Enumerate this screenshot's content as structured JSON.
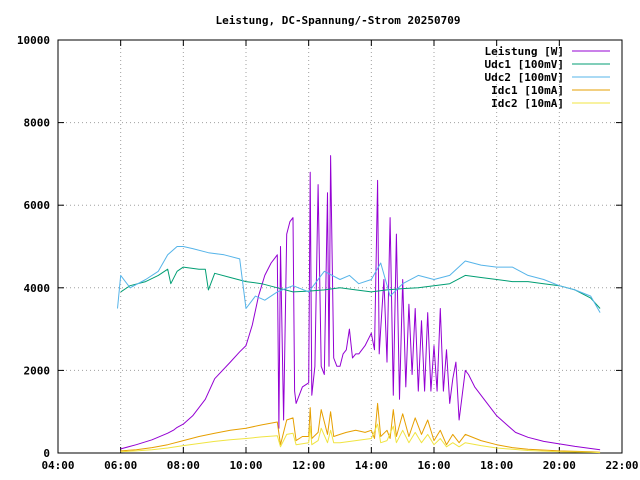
{
  "chart_data": {
    "type": "line",
    "title": "Leistung, DC-Spannung/-Strom 20250709",
    "xlabel": "",
    "ylabel": "",
    "xlim": [
      4,
      22
    ],
    "ylim": [
      0,
      10000
    ],
    "xticks": [
      4,
      6,
      8,
      10,
      12,
      14,
      16,
      18,
      20,
      22
    ],
    "xtick_labels": [
      "04:00",
      "06:00",
      "08:00",
      "10:00",
      "12:00",
      "14:00",
      "16:00",
      "18:00",
      "20:00",
      "22:00"
    ],
    "yticks": [
      0,
      2000,
      4000,
      6000,
      8000,
      10000
    ],
    "ytick_labels": [
      "0",
      "2000",
      "4000",
      "6000",
      "8000",
      "10000"
    ],
    "grid": true,
    "legend_position": "top-right",
    "series": [
      {
        "name": "Leistung [W]",
        "color": "#9400d3",
        "x": [
          6.0,
          6.5,
          7.0,
          7.5,
          7.7,
          7.8,
          8.0,
          8.3,
          8.5,
          8.7,
          9.0,
          9.5,
          9.8,
          10.0,
          10.2,
          10.4,
          10.6,
          10.8,
          10.9,
          11.0,
          11.05,
          11.1,
          11.2,
          11.3,
          11.4,
          11.5,
          11.55,
          11.6,
          11.8,
          12.0,
          12.05,
          12.1,
          12.2,
          12.3,
          12.4,
          12.5,
          12.6,
          12.65,
          12.7,
          12.8,
          12.9,
          13.0,
          13.1,
          13.2,
          13.3,
          13.4,
          13.5,
          13.6,
          13.8,
          14.0,
          14.1,
          14.2,
          14.25,
          14.3,
          14.4,
          14.5,
          14.6,
          14.7,
          14.8,
          14.9,
          15.0,
          15.1,
          15.2,
          15.3,
          15.4,
          15.5,
          15.6,
          15.7,
          15.8,
          15.9,
          16.0,
          16.1,
          16.2,
          16.3,
          16.4,
          16.5,
          16.6,
          16.7,
          16.8,
          16.9,
          17.0,
          17.1,
          17.3,
          17.6,
          18.0,
          18.3,
          18.6,
          19.0,
          19.5,
          20.0,
          20.5,
          21.0,
          21.3
        ],
        "values": [
          100,
          200,
          320,
          480,
          560,
          620,
          700,
          900,
          1100,
          1300,
          1800,
          2200,
          2450,
          2600,
          3100,
          3800,
          4300,
          4600,
          4700,
          4800,
          600,
          5000,
          800,
          5300,
          5600,
          5700,
          1500,
          1200,
          1600,
          1700,
          6800,
          1400,
          2100,
          6500,
          2100,
          1900,
          6300,
          2100,
          7200,
          2300,
          2100,
          2100,
          2400,
          2500,
          3000,
          2300,
          2400,
          2400,
          2600,
          2900,
          2500,
          6600,
          2400,
          3000,
          4200,
          2200,
          5700,
          1400,
          5300,
          1300,
          4200,
          1600,
          3600,
          1900,
          3500,
          1500,
          3200,
          1500,
          3400,
          1500,
          2600,
          1500,
          3500,
          1500,
          2500,
          1200,
          1800,
          2200,
          800,
          1400,
          2000,
          1900,
          1600,
          1300,
          900,
          700,
          500,
          380,
          280,
          220,
          160,
          110,
          80
        ]
      },
      {
        "name": "Udc1 [100mV]",
        "color": "#009e73",
        "x": [
          6.0,
          6.3,
          6.8,
          7.2,
          7.5,
          7.6,
          7.8,
          8.0,
          8.5,
          8.7,
          8.8,
          9.0,
          9.5,
          10.0,
          10.5,
          11.0,
          11.5,
          12.0,
          12.5,
          13.0,
          13.5,
          14.0,
          14.5,
          15.0,
          15.5,
          16.0,
          16.5,
          17.0,
          17.5,
          18.0,
          18.5,
          19.0,
          19.5,
          20.0,
          20.5,
          21.0,
          21.3
        ],
        "values": [
          3900,
          4050,
          4150,
          4300,
          4450,
          4100,
          4400,
          4500,
          4450,
          4450,
          3950,
          4350,
          4250,
          4150,
          4100,
          4000,
          3900,
          3920,
          3950,
          4000,
          3950,
          3900,
          3950,
          3980,
          4000,
          4050,
          4100,
          4300,
          4250,
          4200,
          4150,
          4150,
          4100,
          4050,
          3950,
          3750,
          3500
        ]
      },
      {
        "name": "Udc2 [100mV]",
        "color": "#56b4e9",
        "x": [
          5.9,
          6.0,
          6.3,
          6.8,
          7.2,
          7.5,
          7.8,
          8.0,
          8.3,
          8.8,
          9.3,
          9.8,
          10.0,
          10.3,
          10.6,
          11.0,
          11.5,
          12.0,
          12.5,
          13.0,
          13.3,
          13.6,
          14.0,
          14.3,
          14.6,
          15.0,
          15.5,
          16.0,
          16.5,
          17.0,
          17.5,
          18.0,
          18.5,
          19.0,
          19.5,
          20.0,
          20.5,
          21.0,
          21.3
        ],
        "values": [
          3500,
          4300,
          4000,
          4200,
          4400,
          4800,
          5000,
          5000,
          4950,
          4850,
          4800,
          4700,
          3500,
          3800,
          3700,
          3900,
          4050,
          3900,
          4400,
          4200,
          4300,
          4100,
          4200,
          4600,
          3800,
          4100,
          4300,
          4200,
          4300,
          4650,
          4550,
          4500,
          4500,
          4300,
          4200,
          4050,
          3950,
          3800,
          3400
        ]
      },
      {
        "name": "Idc1 [10mA]",
        "color": "#e69f00",
        "x": [
          6.0,
          6.5,
          7.0,
          7.5,
          8.0,
          8.5,
          9.0,
          9.5,
          10.0,
          10.5,
          11.0,
          11.1,
          11.3,
          11.5,
          11.6,
          11.8,
          12.0,
          12.05,
          12.1,
          12.3,
          12.4,
          12.6,
          12.7,
          12.8,
          13.0,
          13.2,
          13.5,
          13.8,
          14.0,
          14.1,
          14.2,
          14.3,
          14.5,
          14.6,
          14.7,
          14.8,
          15.0,
          15.2,
          15.4,
          15.6,
          15.8,
          16.0,
          16.2,
          16.4,
          16.6,
          16.8,
          17.0,
          17.5,
          18.0,
          18.5,
          19.0,
          20.0,
          21.0,
          21.3
        ],
        "values": [
          50,
          80,
          130,
          200,
          300,
          400,
          480,
          550,
          600,
          680,
          750,
          200,
          800,
          850,
          300,
          400,
          400,
          1100,
          350,
          500,
          1050,
          450,
          1000,
          400,
          450,
          500,
          550,
          500,
          550,
          350,
          1200,
          400,
          550,
          350,
          1050,
          400,
          950,
          400,
          850,
          450,
          800,
          300,
          550,
          200,
          450,
          250,
          450,
          300,
          200,
          130,
          90,
          50,
          30,
          20
        ]
      },
      {
        "name": "Idc2 [10mA]",
        "color": "#f0e442",
        "x": [
          6.0,
          6.5,
          7.0,
          7.5,
          8.0,
          8.5,
          9.0,
          9.5,
          10.0,
          10.5,
          11.0,
          11.1,
          11.3,
          11.5,
          11.6,
          12.0,
          12.05,
          12.1,
          12.3,
          12.4,
          12.6,
          12.7,
          12.8,
          13.0,
          13.5,
          14.0,
          14.2,
          14.3,
          14.5,
          14.7,
          14.8,
          15.0,
          15.2,
          15.4,
          15.6,
          15.8,
          16.0,
          16.2,
          16.4,
          16.6,
          16.8,
          17.0,
          17.5,
          18.0,
          19.0,
          20.0,
          21.0,
          21.3
        ],
        "values": [
          30,
          50,
          80,
          120,
          180,
          230,
          280,
          320,
          350,
          390,
          420,
          150,
          450,
          480,
          200,
          250,
          650,
          200,
          300,
          600,
          250,
          550,
          250,
          250,
          300,
          350,
          700,
          250,
          300,
          650,
          250,
          550,
          250,
          500,
          250,
          450,
          200,
          350,
          150,
          250,
          150,
          250,
          180,
          120,
          60,
          30,
          20,
          10
        ]
      }
    ]
  }
}
